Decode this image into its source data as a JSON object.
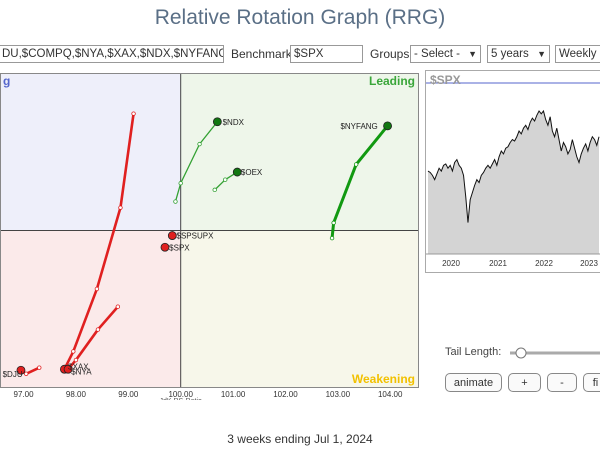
{
  "page": {
    "title": "Relative Rotation Graph (RRG)",
    "footer": "3 weeks ending Jul 1, 2024"
  },
  "controls": {
    "symbols_value": "DU,$COMPQ,$NYA,$XAX,$NDX,$NYFANG,$O",
    "benchmark_label": "Benchmark:",
    "benchmark_value": "$SPX",
    "groups_label": "Groups:",
    "groups_value": "- Select -",
    "period_value": "5 years",
    "frequency_value": "Weekly"
  },
  "chart_data": {
    "type": "scatter",
    "xlabel": "JdK RS-Ratio",
    "x_ticks": [
      "97.00",
      "98.00",
      "99.00",
      "100.00",
      "101.00",
      "102.00",
      "103.00",
      "104.00"
    ],
    "xlim": [
      96.55,
      104.55
    ],
    "ylim": [
      96.9,
      103.1
    ],
    "center": [
      100,
      100
    ],
    "quadrants": [
      {
        "name": "Leading",
        "label": "Leading",
        "color": "#3aa63a",
        "bg": "#eef6ea"
      },
      {
        "name": "Weakening",
        "label": "Weakening",
        "color": "#f2c100",
        "bg": "#f7f7ea"
      },
      {
        "name": "Lagging",
        "label": "",
        "color": "#c93030",
        "bg": "#fbeaea"
      },
      {
        "name": "Improving",
        "label": "g",
        "color": "#5566cc",
        "bg": "#eeeffa"
      }
    ],
    "series": [
      {
        "name": "$NDX",
        "color": "#33a133",
        "tail": [
          [
            99.9,
            100.57
          ],
          [
            100.0,
            100.93
          ],
          [
            100.36,
            101.7
          ],
          [
            100.7,
            102.14
          ]
        ]
      },
      {
        "name": "$OEX",
        "color": "#33a133",
        "tail": [
          [
            100.65,
            100.8
          ],
          [
            100.85,
            101.0
          ],
          [
            101.08,
            101.15
          ]
        ]
      },
      {
        "name": "$NYFANG",
        "color": "#119911",
        "tail": [
          [
            102.89,
            99.85
          ],
          [
            102.92,
            100.15
          ],
          [
            103.35,
            101.3
          ],
          [
            103.95,
            102.06
          ]
        ]
      },
      {
        "name": "$SPSUPX",
        "color": "#e02020",
        "tail": [
          [
            99.84,
            99.9
          ]
        ]
      },
      {
        "name": "$SPX",
        "color": "#e02020",
        "tail": [
          [
            99.7,
            99.67
          ]
        ]
      },
      {
        "name": "$XAX",
        "color": "#e02020",
        "tail": [
          [
            99.1,
            102.3
          ],
          [
            98.85,
            100.45
          ],
          [
            98.4,
            98.85
          ],
          [
            97.95,
            97.62
          ],
          [
            97.78,
            97.27
          ]
        ]
      },
      {
        "name": "$NYA",
        "color": "#e02020",
        "tail": [
          [
            98.8,
            98.5
          ],
          [
            98.42,
            98.05
          ],
          [
            98.0,
            97.45
          ],
          [
            97.85,
            97.27
          ]
        ]
      },
      {
        "name": "$DJU",
        "color": "#e02020",
        "tail": [
          [
            97.3,
            97.3
          ],
          [
            97.05,
            97.18
          ],
          [
            96.95,
            97.25
          ]
        ]
      }
    ],
    "point_labels": [
      {
        "text": "$NDX",
        "x": 100.8,
        "y": 102.14
      },
      {
        "text": "$OEX",
        "x": 101.15,
        "y": 101.15
      },
      {
        "text": "$NYFANG",
        "x": 103.05,
        "y": 102.06
      },
      {
        "text": "$SPSUPX",
        "x": 99.92,
        "y": 99.9
      },
      {
        "text": "$SPX",
        "x": 99.78,
        "y": 99.67
      },
      {
        "text": "$XAX",
        "x": 97.85,
        "y": 97.32
      },
      {
        "text": "$NYA",
        "x": 97.91,
        "y": 97.22
      },
      {
        "text": "$DJU",
        "x": 96.6,
        "y": 97.18
      }
    ]
  },
  "mini_chart": {
    "label": "$SPX",
    "years": [
      "2020",
      "2021",
      "2022",
      "2023"
    ],
    "values": [
      0.58,
      0.57,
      0.55,
      0.52,
      0.56,
      0.6,
      0.58,
      0.62,
      0.63,
      0.6,
      0.62,
      0.58,
      0.64,
      0.66,
      0.62,
      0.6,
      0.55,
      0.4,
      0.22,
      0.38,
      0.43,
      0.48,
      0.52,
      0.5,
      0.55,
      0.57,
      0.6,
      0.62,
      0.6,
      0.63,
      0.66,
      0.62,
      0.68,
      0.72,
      0.7,
      0.74,
      0.75,
      0.78,
      0.8,
      0.79,
      0.82,
      0.86,
      0.84,
      0.88,
      0.9,
      0.87,
      0.92,
      0.95,
      0.93,
      0.97,
      1.0,
      0.98,
      1.0,
      0.94,
      0.9,
      0.96,
      0.86,
      0.82,
      0.88,
      0.8,
      0.72,
      0.78,
      0.75,
      0.7,
      0.73,
      0.8,
      0.74,
      0.68,
      0.64,
      0.7,
      0.74,
      0.77,
      0.72,
      0.78,
      0.82,
      0.8,
      0.76,
      0.82
    ]
  },
  "tail_length_label": "Tail Length:",
  "buttons": {
    "animate": "animate",
    "plus": "+",
    "minus": "-",
    "first": "fi"
  }
}
